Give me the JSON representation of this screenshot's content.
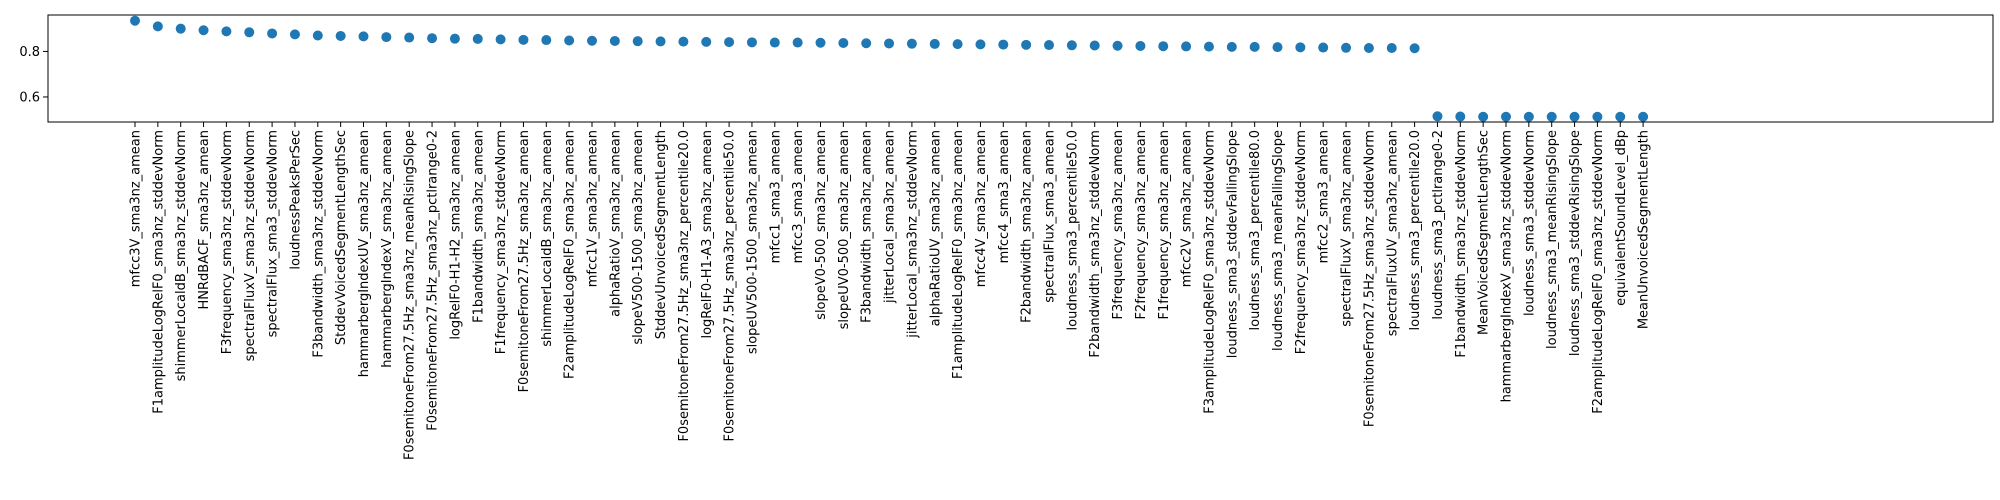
{
  "chart_data": {
    "type": "scatter",
    "title": "",
    "xlabel": "",
    "ylabel": "",
    "ylim": [
      0.49,
      0.96
    ],
    "yticks": [
      0.6,
      0.8
    ],
    "ytick_labels": [
      "0.6",
      "0.8"
    ],
    "grid": false,
    "series": [
      {
        "color": "#1f77b4",
        "categories": [
          "mfcc3V_sma3nz_amean",
          "F1amplitudeLogRelF0_sma3nz_stddevNorm",
          "shimmerLocaldB_sma3nz_stddevNorm",
          "HNRdBACF_sma3nz_amean",
          "F3frequency_sma3nz_stddevNorm",
          "spectralFluxV_sma3nz_stddevNorm",
          "spectralFlux_sma3_stddevNorm",
          "loudnessPeaksPerSec",
          "F3bandwidth_sma3nz_stddevNorm",
          "StddevVoicedSegmentLengthSec",
          "hammarbergIndexUV_sma3nz_amean",
          "hammarbergIndexV_sma3nz_amean",
          "F0semitoneFrom27.5Hz_sma3nz_meanRisingSlope",
          "F0semitoneFrom27.5Hz_sma3nz_pctlrange0-2",
          "logRelF0-H1-H2_sma3nz_amean",
          "F1bandwidth_sma3nz_amean",
          "F1frequency_sma3nz_stddevNorm",
          "F0semitoneFrom27.5Hz_sma3nz_amean",
          "shimmerLocaldB_sma3nz_amean",
          "F2amplitudeLogRelF0_sma3nz_amean",
          "mfcc1V_sma3nz_amean",
          "alphaRatioV_sma3nz_amean",
          "slopeV500-1500_sma3nz_amean",
          "StddevUnvoicedSegmentLength",
          "F0semitoneFrom27.5Hz_sma3nz_percentile20.0",
          "logRelF0-H1-A3_sma3nz_amean",
          "F0semitoneFrom27.5Hz_sma3nz_percentile50.0",
          "slopeUV500-1500_sma3nz_amean",
          "mfcc1_sma3_amean",
          "mfcc3_sma3_amean",
          "slopeV0-500_sma3nz_amean",
          "slopeUV0-500_sma3nz_amean",
          "F3bandwidth_sma3nz_amean",
          "jitterLocal_sma3nz_amean",
          "jitterLocal_sma3nz_stddevNorm",
          "alphaRatioUV_sma3nz_amean",
          "F1amplitudeLogRelF0_sma3nz_amean",
          "mfcc4V_sma3nz_amean",
          "mfcc4_sma3_amean",
          "F2bandwidth_sma3nz_amean",
          "spectralFlux_sma3_amean",
          "loudness_sma3_percentile50.0",
          "F2bandwidth_sma3nz_stddevNorm",
          "F3frequency_sma3nz_amean",
          "F2frequency_sma3nz_amean",
          "F1frequency_sma3nz_amean",
          "mfcc2V_sma3nz_amean",
          "F3amplitudeLogRelF0_sma3nz_stddevNorm",
          "loudness_sma3_stddevFallingSlope",
          "loudness_sma3_percentile80.0",
          "loudness_sma3_meanFallingSlope",
          "F2frequency_sma3nz_stddevNorm",
          "mfcc2_sma3_amean",
          "spectralFluxV_sma3nz_amean",
          "F0semitoneFrom27.5Hz_sma3nz_stddevNorm",
          "spectralFluxUV_sma3nz_amean",
          "loudness_sma3_percentile20.0",
          "loudness_sma3_pctlrange0-2",
          "F1bandwidth_sma3nz_stddevNorm",
          "MeanVoicedSegmentLengthSec",
          "hammarbergIndexV_sma3nz_stddevNorm",
          "loudness_sma3_stddevNorm",
          "loudness_sma3_meanRisingSlope",
          "loudness_sma3_stddevRisingSlope",
          "F2amplitudeLogRelF0_sma3nz_stddevNorm",
          "equivalentSoundLevel_dBp",
          "MeanUnvoicedSegmentLength"
        ],
        "values": [
          0.935,
          0.91,
          0.9,
          0.893,
          0.888,
          0.884,
          0.879,
          0.875,
          0.87,
          0.868,
          0.866,
          0.863,
          0.861,
          0.858,
          0.856,
          0.855,
          0.853,
          0.851,
          0.85,
          0.848,
          0.847,
          0.846,
          0.845,
          0.844,
          0.843,
          0.842,
          0.841,
          0.84,
          0.839,
          0.839,
          0.838,
          0.837,
          0.836,
          0.835,
          0.834,
          0.833,
          0.832,
          0.831,
          0.83,
          0.829,
          0.828,
          0.827,
          0.826,
          0.825,
          0.824,
          0.823,
          0.822,
          0.821,
          0.82,
          0.82,
          0.819,
          0.818,
          0.817,
          0.816,
          0.815,
          0.815,
          0.814,
          0.515,
          0.514,
          0.513,
          0.513,
          0.513,
          0.513,
          0.513,
          0.513,
          0.513,
          0.513
        ]
      }
    ]
  }
}
